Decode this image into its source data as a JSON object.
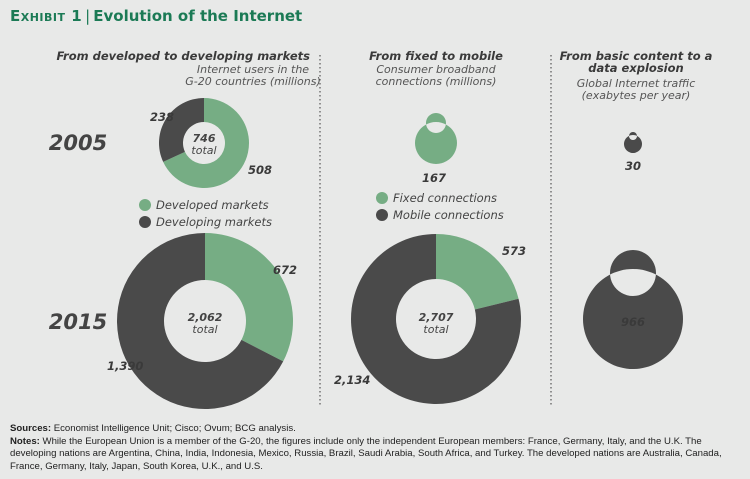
{
  "header": {
    "exhibit": "Exhibit 1",
    "title": "Evolution of the Internet"
  },
  "colors": {
    "green": "#76ad84",
    "dark": "#4a4a4a",
    "title": "#1b7a55"
  },
  "chart_data": [
    {
      "type": "pie",
      "title": "From developed to developing markets",
      "subtitle": [
        "Internet users in the",
        "G-20 countries (millions)"
      ],
      "legend": [
        "Developed markets",
        "Developing markets"
      ],
      "years": [
        "2005",
        "2015"
      ],
      "series": [
        {
          "year": "2005",
          "values": [
            508,
            238
          ],
          "total": "746",
          "total_label": "total"
        },
        {
          "year": "2015",
          "values": [
            672,
            1390
          ],
          "total": "2,062",
          "total_label": "total"
        }
      ],
      "labels": {
        "2005": [
          "508",
          "238"
        ],
        "2015": [
          "672",
          "1,390"
        ]
      }
    },
    {
      "type": "pie",
      "title": "From fixed to mobile",
      "subtitle": [
        "Consumer broadband",
        "connections (millions)"
      ],
      "legend": [
        "Fixed connections",
        "Mobile connections"
      ],
      "series": [
        {
          "year": "2005",
          "values": [
            167,
            0
          ],
          "total": "167"
        },
        {
          "year": "2015",
          "values": [
            573,
            2134
          ],
          "total": "2,707",
          "total_label": "total"
        }
      ],
      "labels": {
        "2015": [
          "573",
          "2,134"
        ]
      }
    },
    {
      "type": "pie",
      "title": [
        "From basic content to a",
        "data explosion"
      ],
      "subtitle": [
        "Global Internet traffic",
        "(exabytes per year)"
      ],
      "series": [
        {
          "year": "2005",
          "values": [
            30
          ],
          "total": "30"
        },
        {
          "year": "2015",
          "values": [
            966
          ],
          "total": "966"
        }
      ]
    }
  ],
  "footer": {
    "sources_label": "Sources:",
    "sources": "Economist Intelligence Unit; Cisco; Ovum; BCG analysis.",
    "notes_label": "Notes:",
    "notes": "While the European Union is a member of the G-20, the figures include only the independent European members: France, Germany, Italy, and the U.K. The developing nations are Argentina, China, India, Indonesia, Mexico, Russia, Brazil, Saudi Arabia, South Africa, and Turkey. The developed nations are Australia, Canada, France, Germany, Italy, Japan, South Korea, U.K., and U.S."
  }
}
